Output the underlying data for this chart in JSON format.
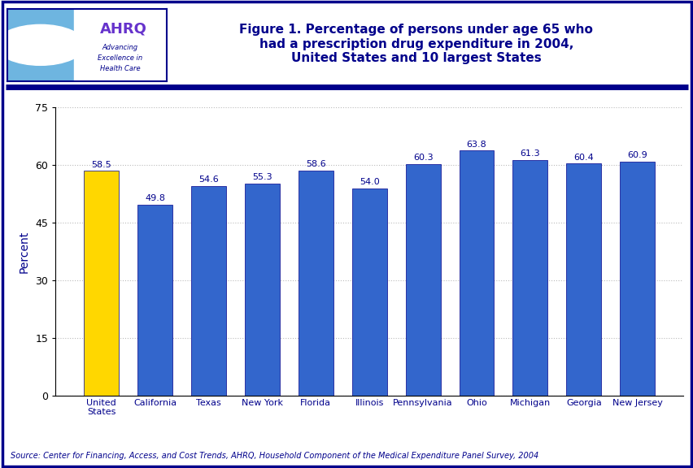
{
  "categories": [
    "United\nStates",
    "California",
    "Texas",
    "New York",
    "Florida",
    "Illinois",
    "Pennsylvania",
    "Ohio",
    "Michigan",
    "Georgia",
    "New Jersey"
  ],
  "values": [
    58.5,
    49.8,
    54.6,
    55.3,
    58.6,
    54.0,
    60.3,
    63.8,
    61.3,
    60.4,
    60.9
  ],
  "bar_colors": [
    "#FFD700",
    "#3366CC",
    "#3366CC",
    "#3366CC",
    "#3366CC",
    "#3366CC",
    "#3366CC",
    "#3366CC",
    "#3366CC",
    "#3366CC",
    "#3366CC"
  ],
  "title_line1": "Figure 1. Percentage of persons under age 65 who",
  "title_line2": "had a prescription drug expenditure in 2004,",
  "title_line3": "United States and 10 largest States",
  "ylabel": "Percent",
  "ylim": [
    0,
    75
  ],
  "yticks": [
    0,
    15,
    30,
    45,
    60,
    75
  ],
  "source_text": "Source: Center for Financing, Access, and Cost Trends, AHRQ, Household Component of the Medical Expenditure Panel Survey, 2004",
  "title_color": "#00008B",
  "bar_edge_color": "#00008B",
  "axis_color": "#000000",
  "label_color": "#00008B",
  "value_label_color": "#00008B",
  "background_color": "#FFFFFF",
  "header_line_color": "#00008B",
  "grid_color": "#BBBBBB",
  "outer_border_color": "#00008B",
  "logo_bg_color": "#6EB5E0",
  "logo_right_bg": "#FFFFFF",
  "logo_border_color": "#00008B",
  "ahrq_text_color": "#6633CC",
  "ahrq_sub_color": "#00008B"
}
